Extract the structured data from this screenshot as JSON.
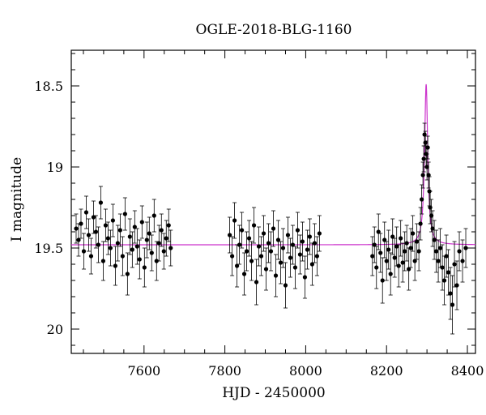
{
  "chart_data": {
    "type": "scatter",
    "title": "OGLE-2018-BLG-1160",
    "xlabel": "HJD - 2450000",
    "ylabel": "I magnitude",
    "xlim": [
      7420,
      8420
    ],
    "ylim": [
      20.15,
      18.28
    ],
    "y_inverted": true,
    "grid": false,
    "xticks": [
      7600,
      7800,
      8000,
      8200,
      8400
    ],
    "yticks": [
      18.5,
      19,
      19.5,
      20
    ],
    "ytick_labels": [
      "18.5",
      "19",
      "19.5",
      "20"
    ],
    "colors": {
      "data": "#000000",
      "model": "#cc33cc",
      "axes": "#000000"
    },
    "series": [
      {
        "kind": "points_with_errorbars",
        "x": [
          7432,
          7438,
          7444,
          7451,
          7457,
          7463,
          7469,
          7475,
          7481,
          7487,
          7493,
          7499,
          7505,
          7511,
          7517,
          7523,
          7529,
          7535,
          7541,
          7547,
          7553,
          7559,
          7565,
          7571,
          7577,
          7583,
          7589,
          7595,
          7601,
          7607,
          7613,
          7619,
          7625,
          7631,
          7637,
          7643,
          7649,
          7655,
          7661,
          7666,
          7812,
          7818,
          7824,
          7830,
          7836,
          7842,
          7848,
          7854,
          7860,
          7866,
          7872,
          7878,
          7884,
          7890,
          7896,
          7902,
          7908,
          7914,
          7920,
          7926,
          7932,
          7938,
          7944,
          7950,
          7956,
          7962,
          7968,
          7974,
          7980,
          7986,
          7992,
          7998,
          8004,
          8010,
          8016,
          8022,
          8028,
          8034,
          8165,
          8170,
          8175,
          8180,
          8185,
          8190,
          8195,
          8200,
          8205,
          8210,
          8215,
          8220,
          8225,
          8230,
          8235,
          8240,
          8245,
          8250,
          8255,
          8260,
          8265,
          8270,
          8275,
          8280,
          8284,
          8287,
          8290,
          8292,
          8294,
          8296,
          8298,
          8300,
          8302,
          8304,
          8306,
          8308,
          8311,
          8314,
          8318,
          8323,
          8328,
          8333,
          8338,
          8343,
          8348,
          8353,
          8358,
          8363,
          8368,
          8374,
          8380,
          8388,
          8396
        ],
        "y": [
          19.38,
          19.45,
          19.35,
          19.52,
          19.28,
          19.42,
          19.55,
          19.31,
          19.4,
          19.48,
          19.22,
          19.58,
          19.36,
          19.44,
          19.5,
          19.33,
          19.61,
          19.47,
          19.39,
          19.55,
          19.29,
          19.66,
          19.43,
          19.51,
          19.37,
          19.49,
          19.57,
          19.34,
          19.62,
          19.45,
          19.41,
          19.53,
          19.3,
          19.58,
          19.47,
          19.39,
          19.52,
          19.44,
          19.36,
          19.5,
          19.42,
          19.55,
          19.33,
          19.61,
          19.48,
          19.39,
          19.66,
          19.52,
          19.44,
          19.58,
          19.36,
          19.71,
          19.49,
          19.55,
          19.41,
          19.63,
          19.47,
          19.52,
          19.38,
          19.67,
          19.45,
          19.59,
          19.5,
          19.73,
          19.42,
          19.56,
          19.48,
          19.62,
          19.39,
          19.54,
          19.46,
          19.68,
          19.51,
          19.43,
          19.6,
          19.47,
          19.55,
          19.41,
          19.55,
          19.48,
          19.62,
          19.4,
          19.53,
          19.7,
          19.45,
          19.58,
          19.51,
          19.66,
          19.43,
          19.56,
          19.49,
          19.61,
          19.44,
          19.59,
          19.52,
          19.47,
          19.63,
          19.5,
          19.41,
          19.58,
          19.46,
          19.52,
          19.35,
          19.2,
          19.05,
          18.95,
          18.8,
          18.85,
          18.92,
          19.0,
          18.88,
          19.05,
          19.15,
          19.25,
          19.3,
          19.38,
          19.45,
          19.52,
          19.58,
          19.5,
          19.62,
          19.7,
          19.55,
          19.65,
          19.78,
          19.85,
          19.6,
          19.73,
          19.52,
          19.58,
          19.5
        ],
        "yerr": [
          0.09,
          0.1,
          0.09,
          0.11,
          0.1,
          0.1,
          0.11,
          0.1,
          0.1,
          0.11,
          0.1,
          0.12,
          0.1,
          0.1,
          0.11,
          0.1,
          0.12,
          0.11,
          0.1,
          0.12,
          0.1,
          0.13,
          0.11,
          0.11,
          0.1,
          0.11,
          0.12,
          0.1,
          0.12,
          0.11,
          0.1,
          0.11,
          0.1,
          0.12,
          0.11,
          0.1,
          0.11,
          0.11,
          0.1,
          0.11,
          0.11,
          0.12,
          0.11,
          0.13,
          0.12,
          0.11,
          0.13,
          0.12,
          0.11,
          0.12,
          0.11,
          0.14,
          0.12,
          0.12,
          0.11,
          0.13,
          0.12,
          0.12,
          0.11,
          0.13,
          0.12,
          0.13,
          0.12,
          0.14,
          0.11,
          0.12,
          0.12,
          0.13,
          0.11,
          0.12,
          0.12,
          0.13,
          0.12,
          0.11,
          0.13,
          0.12,
          0.12,
          0.11,
          0.12,
          0.11,
          0.13,
          0.11,
          0.12,
          0.14,
          0.11,
          0.12,
          0.12,
          0.13,
          0.11,
          0.12,
          0.12,
          0.13,
          0.11,
          0.12,
          0.12,
          0.11,
          0.13,
          0.12,
          0.11,
          0.12,
          0.11,
          0.12,
          0.1,
          0.09,
          0.08,
          0.08,
          0.07,
          0.07,
          0.08,
          0.08,
          0.07,
          0.08,
          0.09,
          0.1,
          0.1,
          0.11,
          0.12,
          0.13,
          0.13,
          0.12,
          0.14,
          0.15,
          0.13,
          0.14,
          0.16,
          0.18,
          0.14,
          0.15,
          0.12,
          0.13,
          0.12
        ]
      },
      {
        "kind": "model_curve",
        "baseline": 19.48,
        "peak_x": 8298,
        "peak_mag": 18.49,
        "width_days": 9.5
      }
    ]
  }
}
